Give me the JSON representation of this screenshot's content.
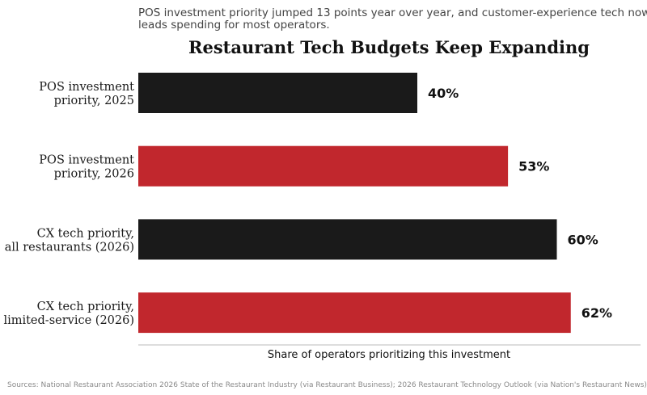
{
  "chart_data": {
    "type": "bar",
    "orientation": "horizontal",
    "subtitle_lines": [
      "POS investment priority jumped 13 points year over year, and customer-experience tech now",
      "leads spending for most operators."
    ],
    "title": "Restaurant Tech Budgets Keep Expanding",
    "xlabel": "Share of operators prioritizing this investment",
    "ylabel": "",
    "xlim": [
      0,
      72
    ],
    "grid": false,
    "categories": [
      [
        "POS investment",
        "priority, 2025"
      ],
      [
        "POS investment",
        "priority, 2026"
      ],
      [
        "CX tech priority,",
        "all restaurants (2026)"
      ],
      [
        "CX tech priority,",
        "limited-service (2026)"
      ]
    ],
    "values": [
      40,
      53,
      60,
      62
    ],
    "value_labels": [
      "40%",
      "53%",
      "60%",
      "62%"
    ],
    "bar_colors": [
      "#1a1a1a",
      "#c1272d",
      "#1a1a1a",
      "#c1272d"
    ],
    "source": "Sources: National Restaurant Association 2026 State of the Restaurant Industry (via Restaurant Business); 2026 Restaurant Technology Outlook (via Nation's Restaurant News)"
  },
  "colors": {
    "dark_bar": "#1a1a1a",
    "accent_bar": "#c1272d",
    "axis_line": "#bbbbbb"
  }
}
